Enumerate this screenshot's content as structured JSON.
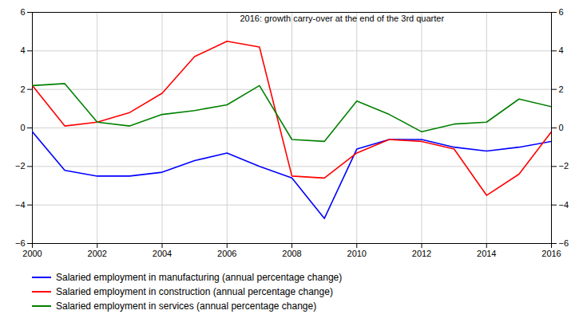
{
  "chart_data": {
    "type": "line",
    "x": [
      2000,
      2001,
      2002,
      2003,
      2004,
      2005,
      2006,
      2007,
      2008,
      2009,
      2010,
      2011,
      2012,
      2013,
      2014,
      2015,
      2016
    ],
    "series": [
      {
        "name": "Salaried employment in manufacturing (annual percentage change)",
        "color": "#0000ff",
        "values": [
          -0.2,
          -2.2,
          -2.5,
          -2.5,
          -2.3,
          -1.7,
          -1.3,
          -2.0,
          -2.6,
          -4.7,
          -1.1,
          -0.6,
          -0.6,
          -1.0,
          -1.2,
          -1.0,
          -0.7
        ]
      },
      {
        "name": "Salaried employment in construction (annual percentage change)",
        "color": "#ff0000",
        "values": [
          2.2,
          0.1,
          0.3,
          0.8,
          1.8,
          3.7,
          4.5,
          4.2,
          -2.5,
          -2.6,
          -1.3,
          -0.6,
          -0.7,
          -1.1,
          -3.5,
          -2.4,
          -0.2
        ]
      },
      {
        "name": "Salaried employment in services (annual percentage change)",
        "color": "#008000",
        "values": [
          2.2,
          2.3,
          0.3,
          0.1,
          0.7,
          0.9,
          1.2,
          2.2,
          -0.6,
          -0.7,
          1.4,
          0.7,
          -0.2,
          0.2,
          0.3,
          1.5,
          1.1
        ]
      }
    ],
    "annotation": "2016: growth carry-over at the end of the 3rd quarter",
    "xlim": [
      2000,
      2016
    ],
    "xticks": [
      2000,
      2002,
      2004,
      2006,
      2008,
      2010,
      2012,
      2014,
      2016
    ],
    "ylim": [
      -6,
      6
    ],
    "yticks": [
      -6,
      -4,
      -2,
      0,
      2,
      4,
      6
    ],
    "grid": true,
    "legend": "bottom"
  }
}
